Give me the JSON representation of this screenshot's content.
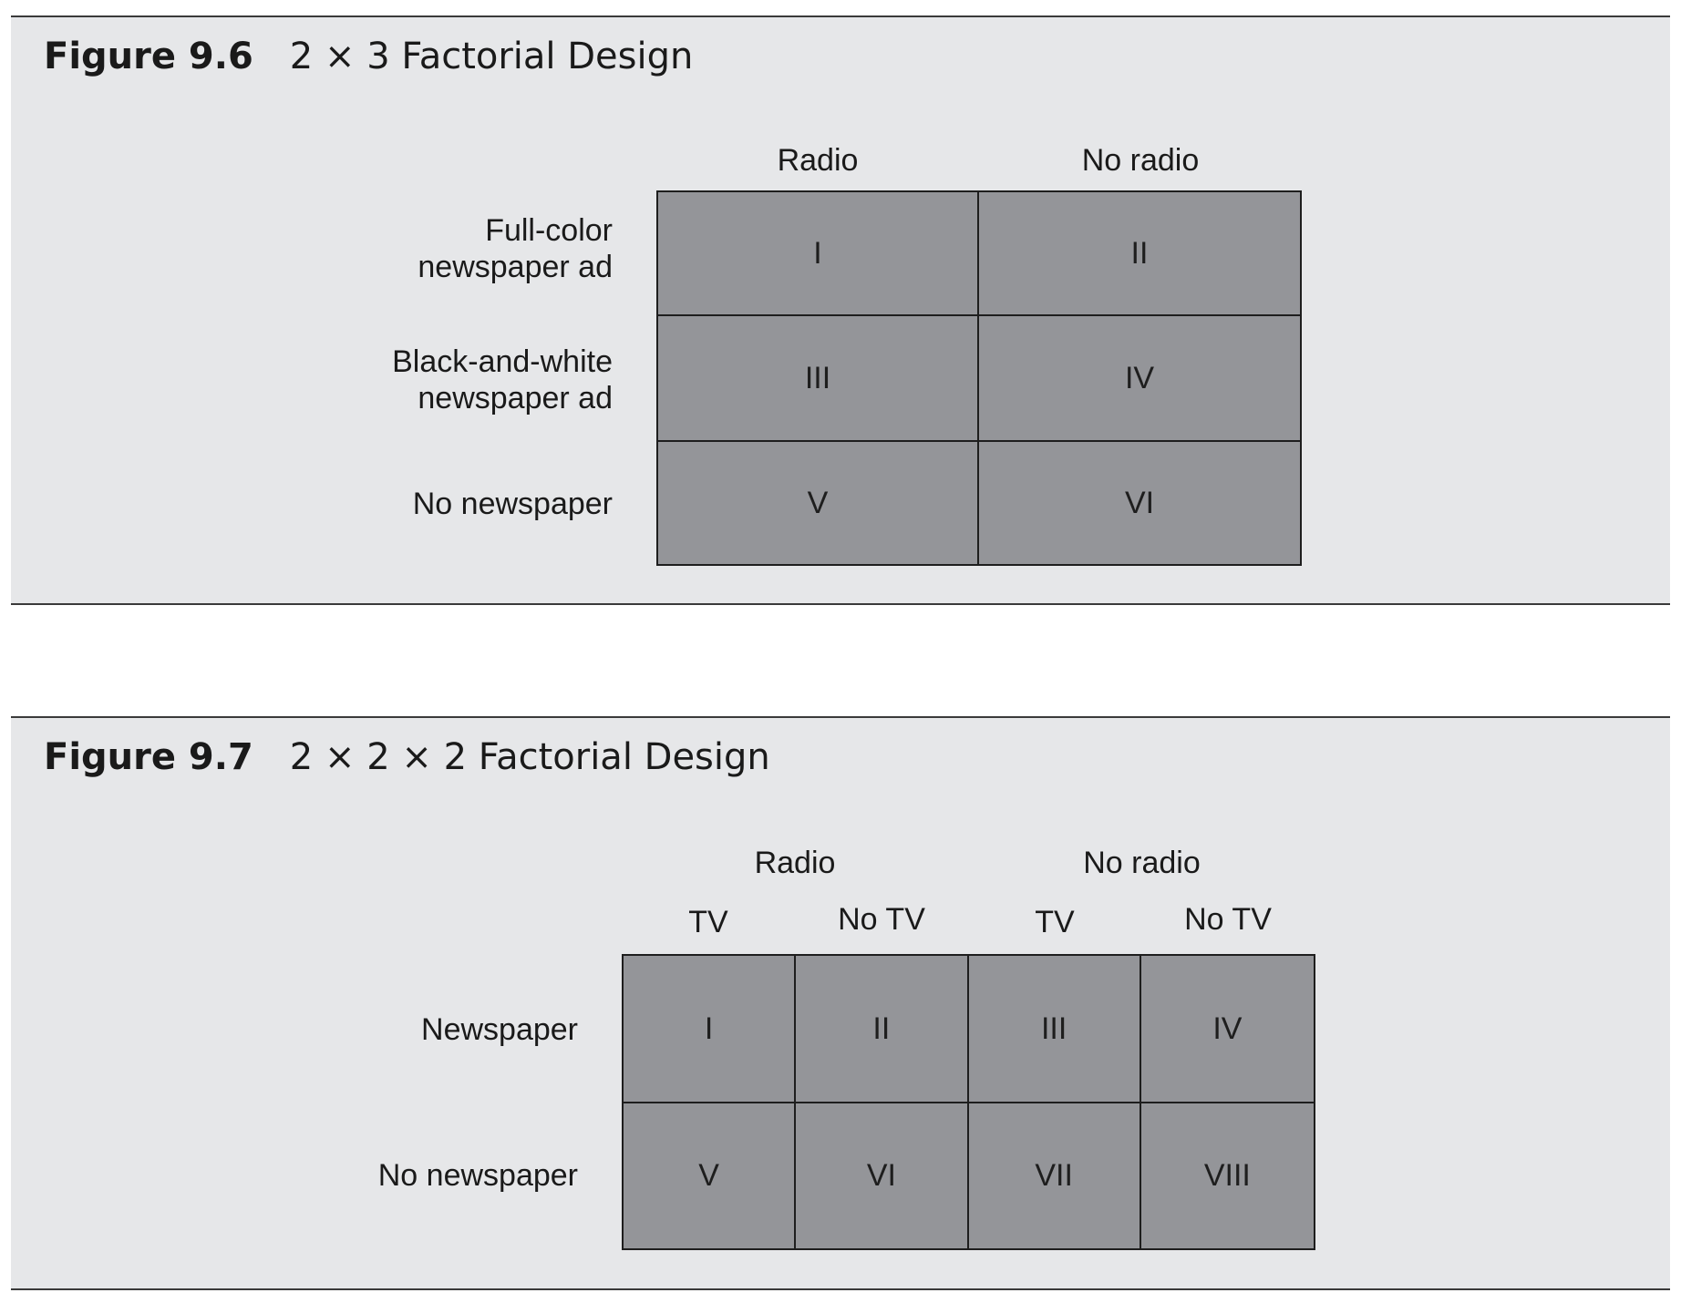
{
  "figures": [
    {
      "number": "Figure 9.6",
      "title": "2 × 3 Factorial Design",
      "column_headers": [
        "Radio",
        "No radio"
      ],
      "row_headers": [
        "Full-color\nnewspaper ad",
        "Black-and-white\nnewspaper ad",
        "No newspaper"
      ],
      "cells": [
        [
          "I",
          "II"
        ],
        [
          "III",
          "IV"
        ],
        [
          "V",
          "VI"
        ]
      ]
    },
    {
      "number": "Figure 9.7",
      "title": "2 × 2 × 2 Factorial Design",
      "column_groups": [
        "Radio",
        "No radio"
      ],
      "column_headers": [
        "TV",
        "No TV",
        "TV",
        "No TV"
      ],
      "row_headers": [
        "Newspaper",
        "No newspaper"
      ],
      "cells": [
        [
          "I",
          "II",
          "III",
          "IV"
        ],
        [
          "V",
          "VI",
          "VII",
          "VIII"
        ]
      ]
    }
  ],
  "colors": {
    "panel_bg": "#e6e7e9",
    "cell_fill": "#949599",
    "rule": "#3a3a3a"
  }
}
